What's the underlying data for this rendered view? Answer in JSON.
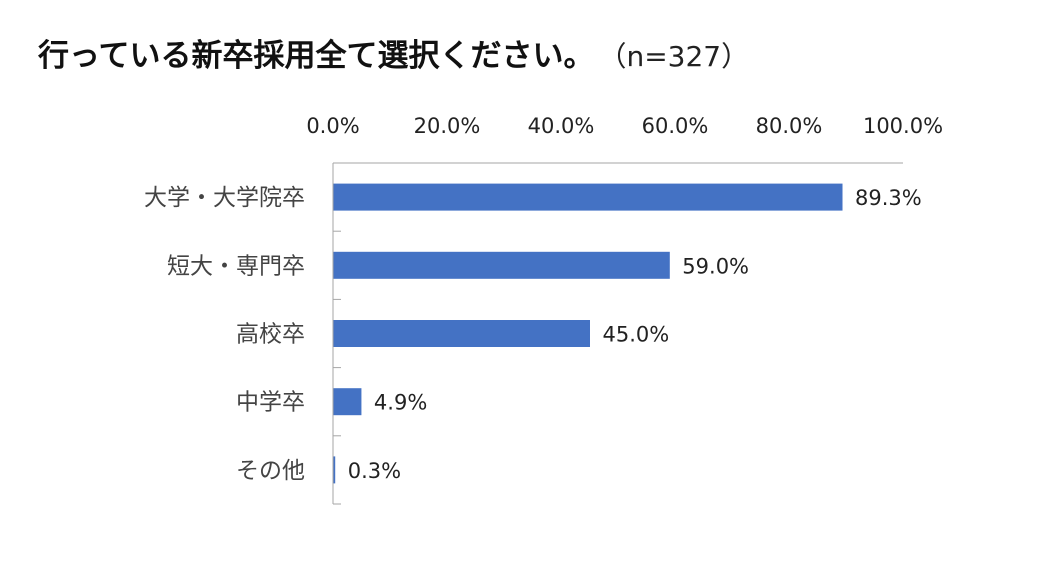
{
  "title": "行っている新卒採用全て選択ください。",
  "subtitle": "（n=327）",
  "chart_data": {
    "type": "bar",
    "orientation": "horizontal",
    "title": "行っている新卒採用全て選択ください。",
    "subtitle": "（n=327）",
    "categories": [
      "大学・大学院卒",
      "短大・専門卒",
      "高校卒",
      "中学卒",
      "その他"
    ],
    "values": [
      89.3,
      59.0,
      45.0,
      4.9,
      0.3
    ],
    "value_labels": [
      "89.3%",
      "59.0%",
      "45.0%",
      "4.9%",
      "0.3%"
    ],
    "x_ticks": [
      "0.0%",
      "20.0%",
      "40.0%",
      "60.0%",
      "80.0%",
      "100.0%"
    ],
    "xlim": [
      0,
      100
    ],
    "x_axis_position": "top",
    "grid": false,
    "legend": "none",
    "bar_color": "#4472C4"
  }
}
